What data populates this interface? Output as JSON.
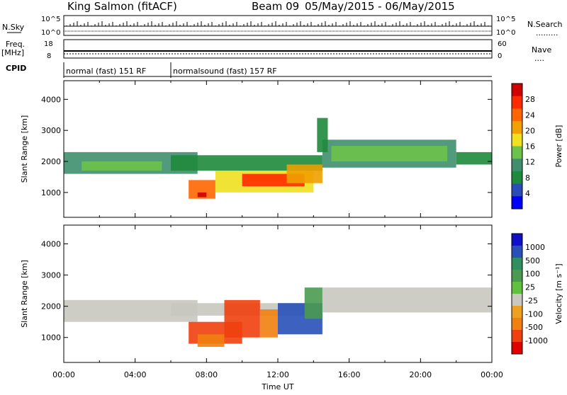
{
  "header": {
    "station": "King Salmon (fitACF)",
    "beam": "Beam 09",
    "date_range": "05/May/2015 - 06/May/2015"
  },
  "top_panels": {
    "nsky_label": "N.Sky",
    "nsearch_label": "N.Search",
    "nsearch_dots": ".........",
    "freq_label": "Freq.",
    "freq_unit": "[MHz]",
    "nave_label": "Nave",
    "nave_dots": "....",
    "cpid_label": "CPID",
    "nsky_ticks": [
      "10^5",
      "10^0"
    ],
    "nsearch_ticks": [
      "10^5",
      "10^0"
    ],
    "freq_ticks": [
      "18",
      "8"
    ],
    "nave_ticks": [
      "60",
      "0"
    ],
    "modes": [
      {
        "label": "normal (fast) 151 RF",
        "start_h": 0,
        "end_h": 6
      },
      {
        "label": "normalsound (fast) 157 RF",
        "start_h": 6,
        "end_h": 24
      }
    ]
  },
  "colors": {
    "power": [
      "#0000ff",
      "#2a4cb8",
      "#1e8a3c",
      "#3f8f6e",
      "#6cc24a",
      "#f0e020",
      "#f0a000",
      "#ff6600",
      "#ff2a00",
      "#d00000"
    ],
    "velocity": [
      "#1010c8",
      "#2850b8",
      "#2f8f60",
      "#4a9a50",
      "#60c040",
      "#c8c8c0",
      "#f0a020",
      "#f08010",
      "#f04010",
      "#e00000"
    ]
  },
  "chart_data": [
    {
      "type": "heatmap",
      "quantity": "Power",
      "xlabel": "",
      "ylabel": "Slant Range [km]",
      "x_unit": "hours UT",
      "xlim": [
        0,
        24
      ],
      "ylim": [
        200,
        4600
      ],
      "x_ticks": [
        "00:00",
        "04:00",
        "08:00",
        "12:00",
        "16:00",
        "20:00",
        "00:00"
      ],
      "y_ticks": [
        1000,
        2000,
        3000,
        4000
      ],
      "colorbar": {
        "label": "Power [dB]",
        "ticks": [
          4,
          8,
          12,
          16,
          20,
          24,
          28
        ],
        "range": [
          0,
          30
        ]
      },
      "regions": [
        {
          "t0": 0.0,
          "t1": 7.5,
          "r0": 1600,
          "r1": 2300,
          "value": 9
        },
        {
          "t0": 1.0,
          "t1": 5.5,
          "r0": 1700,
          "r1": 2000,
          "value": 14
        },
        {
          "t0": 6.0,
          "t1": 14.5,
          "r0": 1700,
          "r1": 2200,
          "value": 8
        },
        {
          "t0": 7.0,
          "t1": 8.5,
          "r0": 800,
          "r1": 1400,
          "value": 22
        },
        {
          "t0": 7.5,
          "t1": 8.0,
          "r0": 850,
          "r1": 1000,
          "value": 28
        },
        {
          "t0": 8.5,
          "t1": 14.0,
          "r0": 1000,
          "r1": 1700,
          "value": 17
        },
        {
          "t0": 10.0,
          "t1": 13.5,
          "r0": 1200,
          "r1": 1600,
          "value": 24
        },
        {
          "t0": 12.5,
          "t1": 14.5,
          "r0": 1300,
          "r1": 1900,
          "value": 20
        },
        {
          "t0": 14.5,
          "t1": 22.0,
          "r0": 1800,
          "r1": 2700,
          "value": 9
        },
        {
          "t0": 15.0,
          "t1": 21.5,
          "r0": 2000,
          "r1": 2500,
          "value": 13
        },
        {
          "t0": 22.0,
          "t1": 24.0,
          "r0": 1900,
          "r1": 2300,
          "value": 8
        },
        {
          "t0": 14.2,
          "t1": 14.8,
          "r0": 2300,
          "r1": 3400,
          "value": 7
        }
      ]
    },
    {
      "type": "heatmap",
      "quantity": "Velocity",
      "xlabel": "Time UT",
      "ylabel": "Slant Range [km]",
      "x_unit": "hours UT",
      "xlim": [
        0,
        24
      ],
      "ylim": [
        200,
        4600
      ],
      "x_ticks": [
        "00:00",
        "04:00",
        "08:00",
        "12:00",
        "16:00",
        "20:00",
        "00:00"
      ],
      "y_ticks": [
        1000,
        2000,
        3000,
        4000
      ],
      "colorbar": {
        "label": "Velocity [m s⁻¹]",
        "ticks": [
          "1000",
          "500",
          "100",
          "25",
          "-25",
          "-100",
          "-500",
          "-1000"
        ]
      },
      "regions": [
        {
          "t0": 0.0,
          "t1": 7.5,
          "r0": 1500,
          "r1": 2200,
          "value": 0
        },
        {
          "t0": 6.0,
          "t1": 14.0,
          "r0": 1700,
          "r1": 2100,
          "value": 0
        },
        {
          "t0": 7.0,
          "t1": 10.0,
          "r0": 800,
          "r1": 1500,
          "value": -300
        },
        {
          "t0": 7.5,
          "t1": 9.0,
          "r0": 700,
          "r1": 1100,
          "value": -80
        },
        {
          "t0": 9.0,
          "t1": 11.0,
          "r0": 1000,
          "r1": 2200,
          "value": -400
        },
        {
          "t0": 11.0,
          "t1": 12.0,
          "r0": 1000,
          "r1": 1900,
          "value": -100
        },
        {
          "t0": 12.0,
          "t1": 14.5,
          "r0": 1100,
          "r1": 2100,
          "value": 300
        },
        {
          "t0": 13.5,
          "t1": 14.5,
          "r0": 1600,
          "r1": 2600,
          "value": 150
        },
        {
          "t0": 14.5,
          "t1": 24.0,
          "r0": 1800,
          "r1": 2600,
          "value": 0
        }
      ]
    }
  ]
}
